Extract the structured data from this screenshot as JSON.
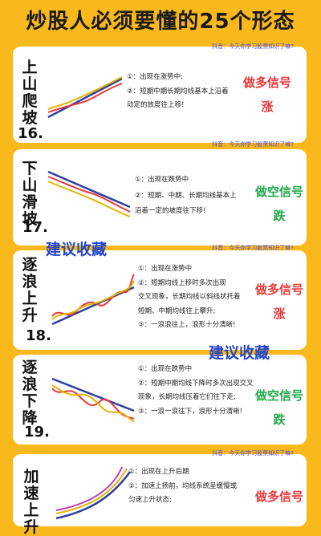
{
  "title": "炒股人必须要懂的25个形态",
  "watermark": "抖音：今天你学习股票知识了嘛?",
  "overlay_text": "建议收藏",
  "cards": [
    {
      "name": "上山爬坡",
      "number": "16.",
      "lines": [
        "①：出现在涨势中;",
        "②：短期中期长期均线基本上沿着",
        "动定的放度往上移!"
      ],
      "signal": [
        "做多信号",
        "涨"
      ],
      "signal_color": "#e8393b"
    },
    {
      "name": "下山滑坡",
      "number": "17.",
      "lines": [
        "①：出现在跌势中",
        "②：短期、中期、长期均线基本上",
        "沿着一定的坡度往下移!"
      ],
      "signal": [
        "做空信号",
        "跌"
      ],
      "signal_color": "#22a94a"
    },
    {
      "name": "逐浪上升",
      "number": "18.",
      "lines": [
        "①：出现在涨势中",
        "②：短期均线上移时多次出现",
        "交叉现象，长期均线以斜线状托着",
        "短期、中期均线往上攀升;",
        "③：一浪浪往上，浪形十分清晰!"
      ],
      "signal": [
        "做多信号",
        "涨"
      ],
      "signal_color": "#e8393b"
    },
    {
      "name": "逐浪下降",
      "number": "19.",
      "lines": [
        "①：出现在跌势中",
        "②：短期中期均线下降时多次出现交叉",
        "现象，长期均线压着它们往下走;",
        "③：一浪一浪往下，浪形十分清晰!"
      ],
      "signal": [
        "做空信号",
        "跌"
      ],
      "signal_color": "#22a94a"
    },
    {
      "name": "加速上升",
      "number": "",
      "lines": [
        "①：出现在上升后期",
        "②：加速上扬前，均线系统呈缓慢或",
        "匀速上升状态;"
      ],
      "signal": [
        "做多信号"
      ],
      "signal_color": "#e8393b"
    }
  ]
}
